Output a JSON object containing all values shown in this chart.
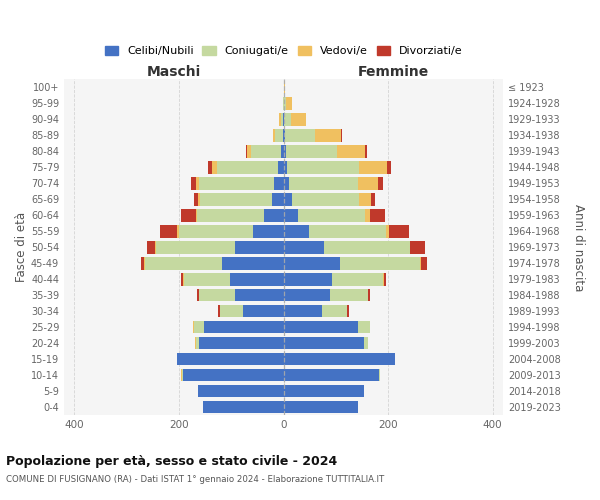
{
  "age_groups": [
    "0-4",
    "5-9",
    "10-14",
    "15-19",
    "20-24",
    "25-29",
    "30-34",
    "35-39",
    "40-44",
    "45-49",
    "50-54",
    "55-59",
    "60-64",
    "65-69",
    "70-74",
    "75-79",
    "80-84",
    "85-89",
    "90-94",
    "95-99",
    "100+"
  ],
  "birth_years": [
    "2019-2023",
    "2014-2018",
    "2009-2013",
    "2004-2008",
    "1999-2003",
    "1994-1998",
    "1989-1993",
    "1984-1988",
    "1979-1983",
    "1974-1978",
    "1969-1973",
    "1964-1968",
    "1959-1963",
    "1954-1958",
    "1949-1953",
    "1944-1948",
    "1939-1943",
    "1934-1938",
    "1929-1933",
    "1924-1928",
    "≤ 1923"
  ],
  "colors": {
    "celibi": "#4472C4",
    "coniugati": "#C5D9A0",
    "vedovi": "#F0C060",
    "divorziati": "#C0392B"
  },
  "maschi": {
    "celibi": [
      155,
      163,
      193,
      203,
      162,
      153,
      78,
      93,
      103,
      118,
      92,
      58,
      38,
      22,
      18,
      10,
      4,
      2,
      1,
      0,
      0
    ],
    "coniugati": [
      0,
      1,
      1,
      1,
      6,
      18,
      43,
      68,
      88,
      148,
      153,
      143,
      128,
      138,
      143,
      118,
      58,
      14,
      4,
      1,
      0
    ],
    "vedovi": [
      0,
      0,
      2,
      0,
      2,
      2,
      0,
      0,
      1,
      1,
      1,
      2,
      2,
      4,
      6,
      8,
      8,
      4,
      4,
      1,
      0
    ],
    "divorziati": [
      0,
      0,
      0,
      0,
      0,
      0,
      4,
      4,
      4,
      6,
      16,
      33,
      28,
      8,
      10,
      8,
      2,
      0,
      0,
      0,
      0
    ]
  },
  "femmine": {
    "celibi": [
      143,
      153,
      183,
      213,
      153,
      143,
      73,
      88,
      93,
      108,
      78,
      48,
      28,
      16,
      10,
      7,
      4,
      3,
      1,
      0,
      0
    ],
    "coniugati": [
      0,
      1,
      1,
      1,
      8,
      23,
      48,
      73,
      98,
      153,
      163,
      148,
      128,
      128,
      133,
      138,
      98,
      58,
      14,
      4,
      1
    ],
    "vedovi": [
      0,
      0,
      0,
      0,
      0,
      0,
      0,
      0,
      1,
      1,
      1,
      6,
      10,
      23,
      38,
      53,
      53,
      48,
      28,
      13,
      2
    ],
    "divorziati": [
      0,
      0,
      0,
      0,
      0,
      0,
      4,
      4,
      4,
      13,
      28,
      38,
      28,
      8,
      10,
      8,
      4,
      2,
      0,
      0,
      0
    ]
  },
  "title_main": "Popolazione per età, sesso e stato civile - 2024",
  "title_sub": "COMUNE DI FUSIGNANO (RA) - Dati ISTAT 1° gennaio 2024 - Elaborazione TUTTITALIA.IT",
  "label_maschi": "Maschi",
  "label_femmine": "Femmine",
  "ylabel_left": "Fasce di età",
  "ylabel_right": "Anni di nascita",
  "xlim": 420,
  "xtick_vals": [
    -400,
    -200,
    0,
    200,
    400
  ],
  "legend_labels": [
    "Celibi/Nubili",
    "Coniugati/e",
    "Vedovi/e",
    "Divorziati/e"
  ],
  "bg_color": "#ffffff",
  "plot_bg": "#f5f5f5",
  "grid_color": "#cccccc"
}
